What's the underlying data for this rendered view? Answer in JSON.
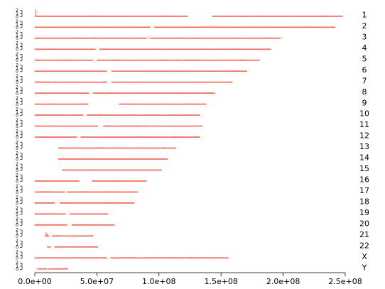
{
  "chart_data": {
    "type": "bar",
    "title": "",
    "xlabel": "",
    "ylabel": "",
    "x_unit": "bp",
    "xlim": [
      0,
      250000000
    ],
    "x_ticks": [
      {
        "value": 0,
        "label": "0.0e+00"
      },
      {
        "value": 50000000,
        "label": "5.0e+07"
      },
      {
        "value": 100000000,
        "label": "1.0e+08"
      },
      {
        "value": 150000000,
        "label": "1.5e+08"
      },
      {
        "value": 200000000,
        "label": "2.0e+08"
      },
      {
        "value": 250000000,
        "label": "2.5e+08"
      }
    ],
    "track_y_ticks": [
      "0",
      "1",
      "2"
    ],
    "bar_color": "#ee6a5a",
    "axis_color": "#000000",
    "chromosomes": [
      {
        "label": "1",
        "segments": [
          [
            0,
            123000000
          ],
          [
            143000000,
            248000000
          ]
        ],
        "peaks": [
          [
            700000,
            0.95
          ]
        ]
      },
      {
        "label": "2",
        "segments": [
          [
            0,
            93000000
          ],
          [
            96000000,
            242000000
          ]
        ],
        "peaks": []
      },
      {
        "label": "3",
        "segments": [
          [
            0,
            90000000
          ],
          [
            93000000,
            198000000
          ]
        ],
        "peaks": [
          [
            92000000,
            0.25
          ]
        ]
      },
      {
        "label": "4",
        "segments": [
          [
            0,
            49000000
          ],
          [
            52000000,
            190000000
          ]
        ],
        "peaks": []
      },
      {
        "label": "5",
        "segments": [
          [
            0,
            47000000
          ],
          [
            50000000,
            181000000
          ]
        ],
        "peaks": []
      },
      {
        "label": "6",
        "segments": [
          [
            0,
            58000000
          ],
          [
            62000000,
            171000000
          ]
        ],
        "peaks": []
      },
      {
        "label": "7",
        "segments": [
          [
            0,
            58000000
          ],
          [
            62000000,
            159000000
          ]
        ],
        "peaks": []
      },
      {
        "label": "8",
        "segments": [
          [
            0,
            44000000
          ],
          [
            47000000,
            145000000
          ]
        ],
        "peaks": []
      },
      {
        "label": "9",
        "segments": [
          [
            0,
            43000000
          ],
          [
            68000000,
            138000000
          ]
        ],
        "peaks": []
      },
      {
        "label": "10",
        "segments": [
          [
            0,
            39000000
          ],
          [
            42000000,
            133000000
          ]
        ],
        "peaks": []
      },
      {
        "label": "11",
        "segments": [
          [
            0,
            51000000
          ],
          [
            55000000,
            135000000
          ]
        ],
        "peaks": []
      },
      {
        "label": "12",
        "segments": [
          [
            0,
            34000000
          ],
          [
            37000000,
            133000000
          ]
        ],
        "peaks": []
      },
      {
        "label": "13",
        "segments": [
          [
            19000000,
            114000000
          ]
        ],
        "peaks": []
      },
      {
        "label": "14",
        "segments": [
          [
            19000000,
            107000000
          ]
        ],
        "peaks": []
      },
      {
        "label": "15",
        "segments": [
          [
            22000000,
            102000000
          ]
        ],
        "peaks": []
      },
      {
        "label": "16",
        "segments": [
          [
            0,
            36000000
          ],
          [
            46000000,
            90000000
          ]
        ],
        "peaks": []
      },
      {
        "label": "17",
        "segments": [
          [
            0,
            24000000
          ],
          [
            26000000,
            83000000
          ]
        ],
        "peaks": []
      },
      {
        "label": "18",
        "segments": [
          [
            0,
            16000000
          ],
          [
            20000000,
            80000000
          ]
        ],
        "peaks": []
      },
      {
        "label": "19",
        "segments": [
          [
            0,
            25000000
          ],
          [
            28000000,
            59000000
          ]
        ],
        "peaks": []
      },
      {
        "label": "20",
        "segments": [
          [
            0,
            26000000
          ],
          [
            30000000,
            64000000
          ]
        ],
        "peaks": []
      },
      {
        "label": "21",
        "segments": [
          [
            8000000,
            11500000
          ],
          [
            14000000,
            47000000
          ]
        ],
        "peaks": [
          [
            9000000,
            0.55
          ],
          [
            10000000,
            0.35
          ]
        ]
      },
      {
        "label": "22",
        "segments": [
          [
            10000000,
            13000000
          ],
          [
            16000000,
            51000000
          ]
        ],
        "peaks": []
      },
      {
        "label": "X",
        "segments": [
          [
            0,
            58000000
          ],
          [
            61000000,
            156000000
          ]
        ],
        "peaks": []
      },
      {
        "label": "Y",
        "segments": [
          [
            2000000,
            10000000
          ],
          [
            11000000,
            27000000
          ]
        ],
        "peaks": []
      }
    ]
  }
}
